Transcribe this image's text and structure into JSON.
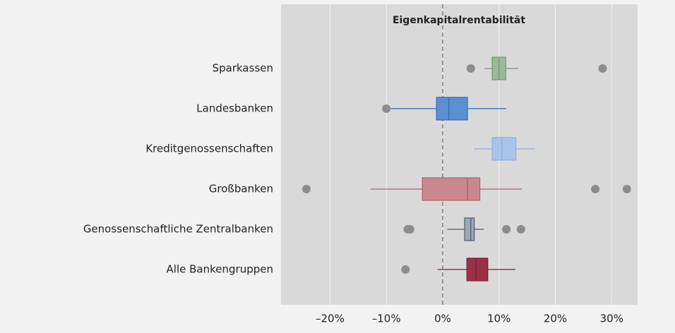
{
  "chart_data": {
    "type": "box",
    "title": "Eigenkapitalrentabilität",
    "xlim": [
      -28.7,
      34.6
    ],
    "xticks": [
      {
        "value": -20,
        "label": "–20%"
      },
      {
        "value": -10,
        "label": "–10%"
      },
      {
        "value": 0,
        "label": "0%"
      },
      {
        "value": 10,
        "label": "10%"
      },
      {
        "value": 20,
        "label": "20%"
      },
      {
        "value": 30,
        "label": "30%"
      }
    ],
    "grid": true,
    "reference_line": 0,
    "outlier_color": "#8c8c8c",
    "series": [
      {
        "name": "Sparkassen",
        "color": "#9cb89a",
        "edge_color": "#6e9a6c",
        "stats": [
          7.4,
          8.8,
          10.0,
          11.2,
          13.4
        ],
        "outliers": [
          5.0,
          28.4
        ]
      },
      {
        "name": "Landesbanken",
        "color": "#5b8fd0",
        "edge_color": "#2e6bb5",
        "stats": [
          -9.3,
          -1.1,
          1.1,
          4.4,
          11.3
        ],
        "outliers": [
          -10.0
        ]
      },
      {
        "name": "Kreditgenossenschaften",
        "color": "#a9c3ea",
        "edge_color": "#8aaee0",
        "stats": [
          5.5,
          8.8,
          10.5,
          13.0,
          16.4
        ],
        "outliers": []
      },
      {
        "name": "Großbanken",
        "color": "#c9878f",
        "edge_color": "#b0606b",
        "stats": [
          -12.8,
          -3.6,
          4.4,
          6.6,
          14.1
        ],
        "outliers": [
          -24.2,
          27.1,
          32.7
        ]
      },
      {
        "name": "Genossenschaftliche Zentralbanken",
        "color": "#9aa8b8",
        "edge_color": "#4d5c6c",
        "stats": [
          0.8,
          3.9,
          5.0,
          5.6,
          7.3
        ],
        "outliers": [
          -6.2,
          -5.8,
          11.3,
          13.9
        ]
      },
      {
        "name": "Alle Bankengruppen",
        "color": "#9b3049",
        "edge_color": "#7a1e35",
        "stats": [
          -0.9,
          4.3,
          5.9,
          8.0,
          12.9
        ],
        "outliers": [
          -6.6
        ]
      }
    ]
  }
}
